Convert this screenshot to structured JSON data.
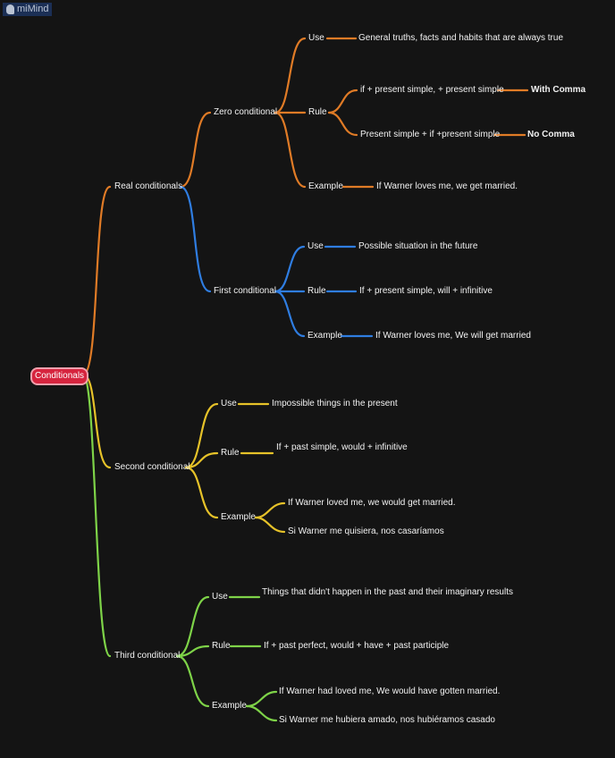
{
  "app": {
    "logo_text": "miMind"
  },
  "colors": {
    "background": "#141414",
    "root": "#d6243e",
    "real": "#e07b26",
    "first": "#2f7de1",
    "second": "#e6c229",
    "third": "#7ed348"
  },
  "root": "Conditionals",
  "real": {
    "label": "Real conditionals",
    "zero": {
      "label": "Zero conditional",
      "use": "Use",
      "use_text": "General truths, facts and habits that are always true",
      "rule": "Rule",
      "rule_a": "if + present simple, + present simple",
      "rule_a_note": "With Comma",
      "rule_b": "Present simple + if +present simple",
      "rule_b_note": "No Comma",
      "example": "Example",
      "example_text": "If Warner loves me, we get married."
    },
    "first": {
      "label": "First conditional",
      "use": "Use",
      "use_text": "Possible situation in the future",
      "rule": "Rule",
      "rule_text": "If + present simple, will + infinitive",
      "example": "Example",
      "example_text": "If Warner loves me, We will get married"
    }
  },
  "second": {
    "label": "Second conditional",
    "use": "Use",
    "use_text": "Impossible things in the present",
    "rule": "Rule",
    "rule_text": "If + past simple, would + infinitive",
    "example": "Example",
    "example_a": "If Warner loved me, we would get married.",
    "example_b": "Si Warner me quisiera, nos casaríamos"
  },
  "third": {
    "label": "Third conditional",
    "use": "Use",
    "use_text": "Things that didn't happen in the past and their imaginary results",
    "rule": "Rule",
    "rule_text": "If + past perfect, would + have + past participle",
    "example": "Example",
    "example_a": "If Warner had loved me, We would have gotten married.",
    "example_b": "Si Warner me hubiera amado, nos hubiéramos casado"
  }
}
